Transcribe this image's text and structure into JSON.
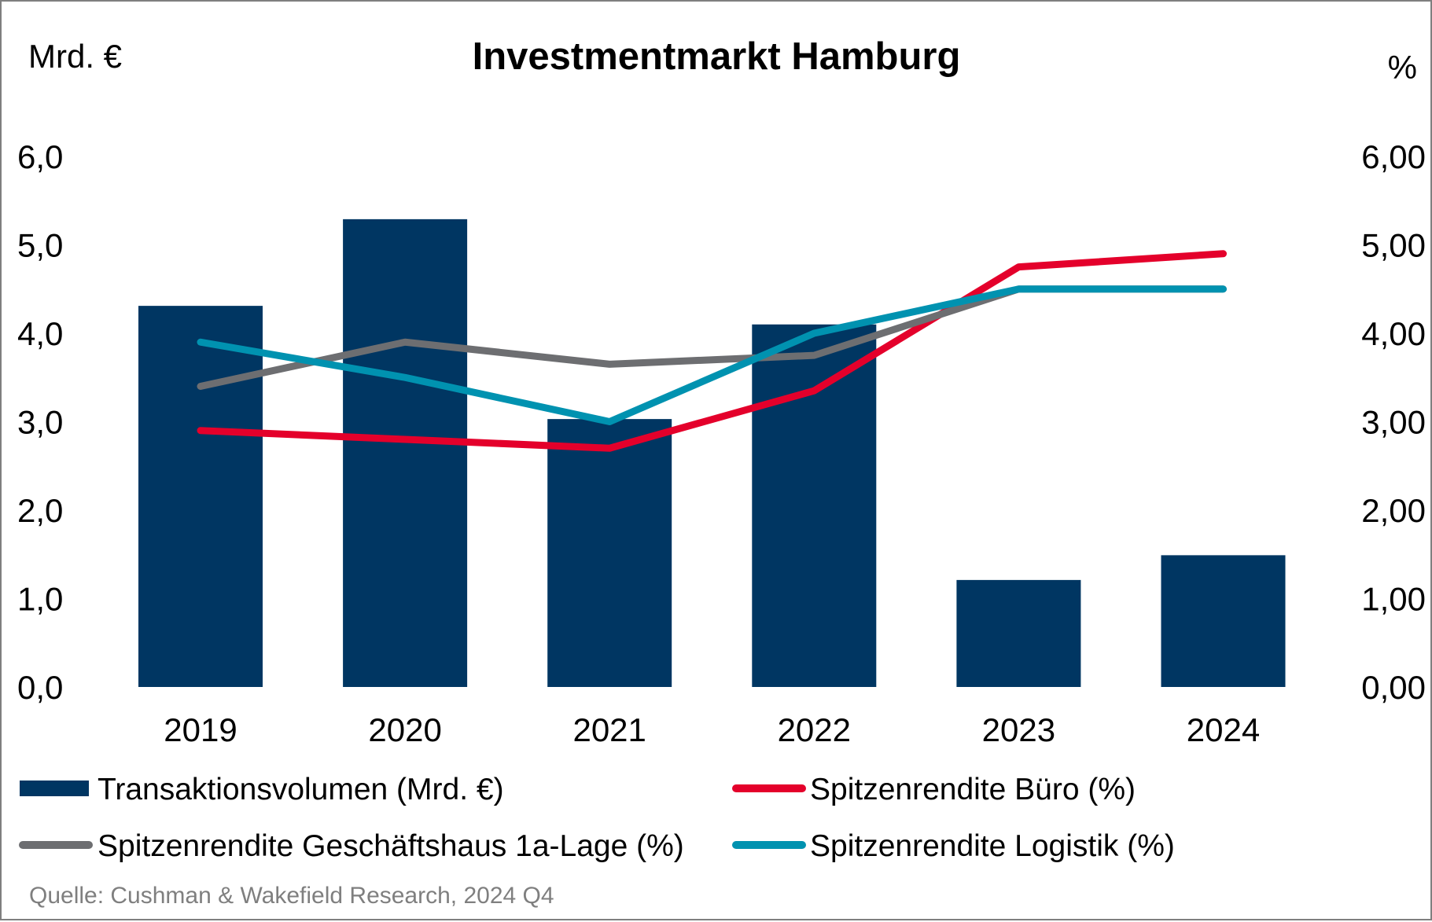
{
  "chart_data": {
    "type": "bar",
    "title": "Investmentmarkt Hamburg",
    "left_axis_unit": "Mrd. €",
    "right_axis_unit": "%",
    "categories": [
      "2019",
      "2020",
      "2021",
      "2022",
      "2023",
      "2024"
    ],
    "left_axis": {
      "ylim": [
        0,
        6
      ],
      "ticks": [
        0,
        1,
        2,
        3,
        4,
        5,
        6
      ],
      "tick_labels": [
        "0,0",
        "1,0",
        "2,0",
        "3,0",
        "4,0",
        "5,0",
        "6,0"
      ]
    },
    "right_axis": {
      "ylim": [
        0,
        6
      ],
      "ticks": [
        0,
        1,
        2,
        3,
        4,
        5,
        6
      ],
      "tick_labels": [
        "0,00",
        "1,00",
        "2,00",
        "3,00",
        "4,00",
        "5,00",
        "6,00"
      ]
    },
    "grid": false,
    "series": [
      {
        "name": "Transaktionsvolumen (Mrd. €)",
        "type": "bar",
        "axis": "left",
        "color": "#003662",
        "values": [
          4.31,
          5.29,
          3.03,
          4.1,
          1.21,
          1.49
        ]
      },
      {
        "name": "Spitzenrendite Büro (%)",
        "type": "line",
        "axis": "right",
        "color": "#E4002B",
        "values": [
          2.9,
          2.8,
          2.7,
          3.35,
          4.75,
          4.9
        ]
      },
      {
        "name": "Spitzenrendite Geschäftshaus 1a-Lage (%)",
        "type": "line",
        "axis": "right",
        "color": "#6D6E71",
        "values": [
          3.4,
          3.9,
          3.65,
          3.75,
          4.5,
          4.5
        ]
      },
      {
        "name": "Spitzenrendite Logistik (%)",
        "type": "line",
        "axis": "right",
        "color": "#0092B0",
        "values": [
          3.9,
          3.5,
          3.0,
          4.0,
          4.5,
          4.5
        ]
      }
    ],
    "legend": {
      "placement": "bottom",
      "items": [
        {
          "label": "Transaktionsvolumen (Mrd. €)",
          "marker": "bar",
          "color": "#003662"
        },
        {
          "label": "Spitzenrendite Büro (%)",
          "marker": "line",
          "color": "#E4002B"
        },
        {
          "label": "Spitzenrendite Geschäftshaus 1a-Lage (%)",
          "marker": "line",
          "color": "#6D6E71"
        },
        {
          "label": "Spitzenrendite Logistik (%)",
          "marker": "line",
          "color": "#0092B0"
        }
      ]
    },
    "source": "Quelle: Cushman & Wakefield Research, 2024 Q4"
  }
}
